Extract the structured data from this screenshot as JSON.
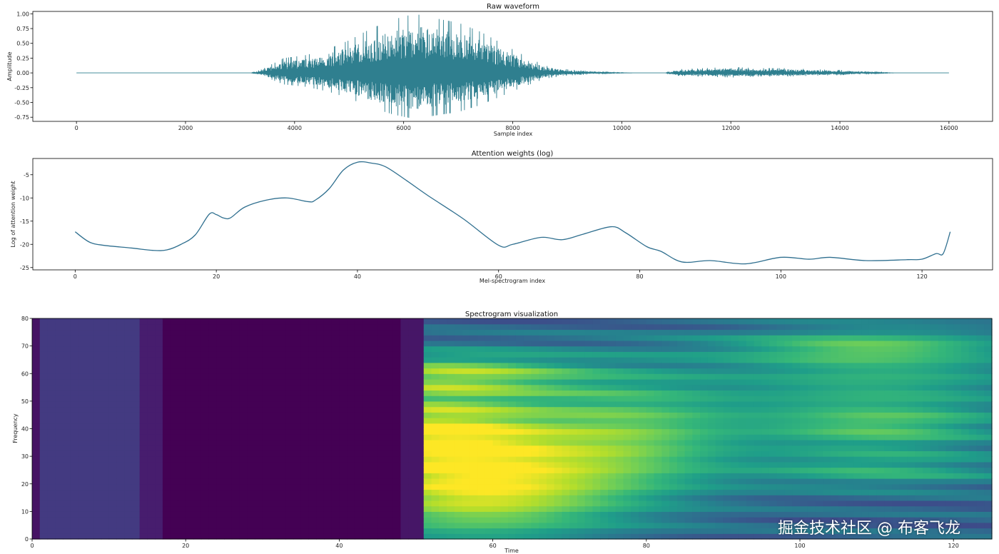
{
  "chart_data": [
    {
      "type": "line",
      "title": "Raw waveform",
      "xlabel": "Sample index",
      "ylabel": "Amplitude",
      "xlim": [
        -800,
        16800
      ],
      "ylim": [
        -0.82,
        1.04
      ],
      "xticks": [
        0,
        2000,
        4000,
        6000,
        8000,
        10000,
        12000,
        14000,
        16000
      ],
      "yticks": [
        -0.75,
        -0.5,
        -0.25,
        0.0,
        0.25,
        0.5,
        0.75,
        1.0
      ],
      "ytick_labels": [
        "-0.75",
        "-0.50",
        "-0.25",
        "0.00",
        "0.25",
        "0.50",
        "0.75",
        "1.00"
      ],
      "color": "#2f7f8f",
      "envelope": {
        "x": [
          0,
          3200,
          3400,
          3800,
          4200,
          4600,
          5000,
          5400,
          5800,
          6200,
          6600,
          7000,
          7400,
          7800,
          8200,
          8600,
          9000,
          9400,
          9800,
          10200,
          10800,
          11000,
          11500,
          12000,
          12500,
          13000,
          13500,
          14000,
          14500,
          15000,
          15500,
          16000
        ],
        "y": [
          0.0,
          0.0,
          0.06,
          0.25,
          0.3,
          0.4,
          0.55,
          0.75,
          0.9,
          1.0,
          0.92,
          0.85,
          0.7,
          0.5,
          0.3,
          0.12,
          0.06,
          0.03,
          0.01,
          0.0,
          0.0,
          0.06,
          0.08,
          0.1,
          0.08,
          0.08,
          0.06,
          0.05,
          0.02,
          0.0,
          0.0,
          0.0
        ]
      }
    },
    {
      "type": "line",
      "title": "Attention weights (log)",
      "xlabel": "Mel-spectrogram index",
      "ylabel": "Log of attention weight",
      "xlim": [
        -6,
        130
      ],
      "ylim": [
        -25.5,
        -1.5
      ],
      "xticks": [
        0,
        20,
        40,
        60,
        80,
        100,
        120
      ],
      "yticks": [
        -25,
        -20,
        -15,
        -10,
        -5
      ],
      "color": "#2f6f8f",
      "x": [
        0,
        2,
        4,
        8,
        11,
        13,
        15,
        17,
        19,
        20,
        21,
        22,
        24,
        27,
        30,
        33,
        34,
        36,
        38,
        40,
        42,
        44,
        47,
        50,
        55,
        60,
        62,
        66,
        69,
        72,
        76,
        78,
        81,
        83,
        86,
        90,
        95,
        100,
        104,
        107,
        112,
        118,
        120,
        122,
        123,
        124
      ],
      "y": [
        -17.3,
        -19.5,
        -20.2,
        -20.8,
        -21.3,
        -21.2,
        -20,
        -18,
        -13.5,
        -13.6,
        -14.3,
        -14.3,
        -12,
        -10.5,
        -10,
        -10.8,
        -10.5,
        -8,
        -4,
        -2.3,
        -2.5,
        -3.3,
        -6.3,
        -9.5,
        -14.5,
        -20.2,
        -20,
        -18.5,
        -19,
        -17.8,
        -16.2,
        -17.5,
        -20.5,
        -21.5,
        -23.8,
        -23.5,
        -24.2,
        -22.8,
        -23.2,
        -22.8,
        -23.5,
        -23.3,
        -23.2,
        -22.0,
        -22.0,
        -17.3
      ]
    },
    {
      "type": "heatmap",
      "title": "Spectrogram visualization",
      "xlabel": "Time",
      "ylabel": "Frequency",
      "xlim": [
        0,
        125
      ],
      "ylim": [
        0,
        80
      ],
      "xticks": [
        0,
        20,
        40,
        60,
        80,
        100,
        120
      ],
      "yticks": [
        0,
        10,
        20,
        30,
        40,
        50,
        60,
        70,
        80
      ],
      "colormap": "viridis"
    }
  ],
  "watermark": "掘金技术社区 @ 布客飞龙"
}
